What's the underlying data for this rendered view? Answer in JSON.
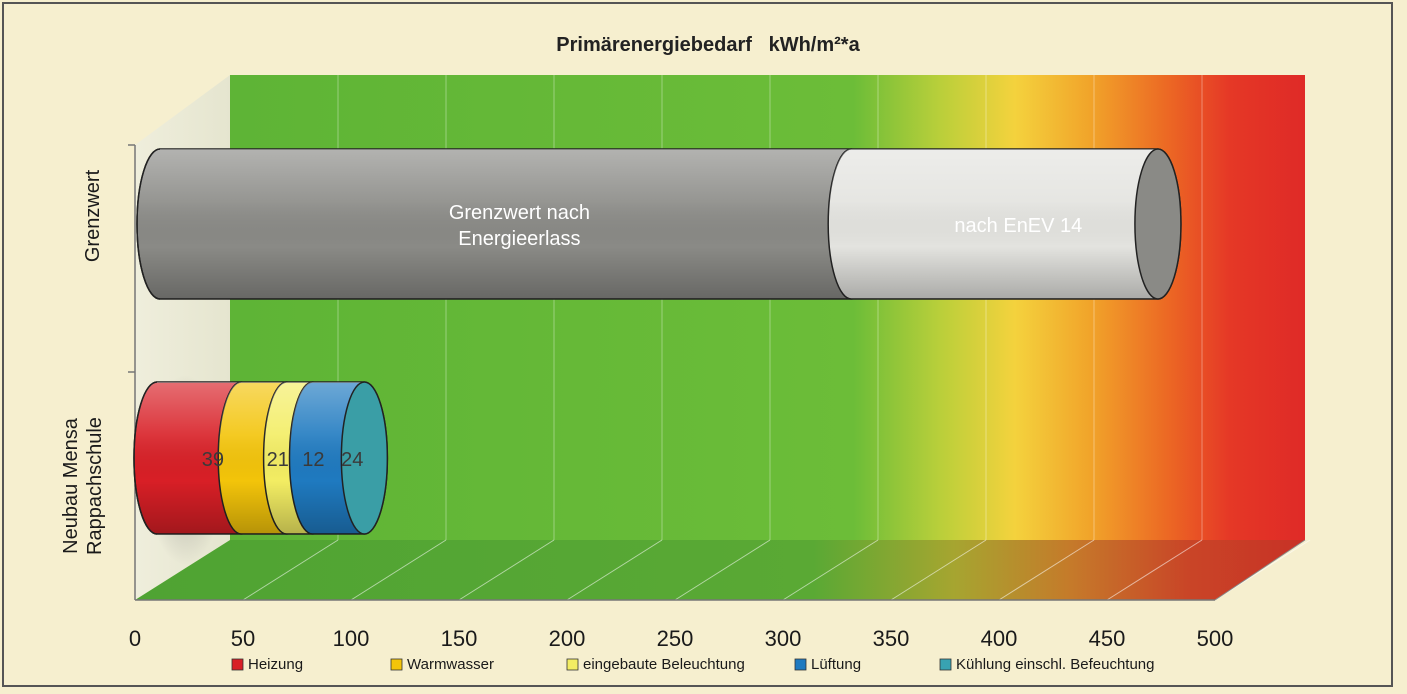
{
  "chart_data": {
    "type": "bar",
    "stacked": true,
    "orientation": "horizontal",
    "three_d": true,
    "bar_shape": "cylinder",
    "title": "Primärenergiebedarf   kWh/m²*a",
    "xlim": [
      0,
      500
    ],
    "x_ticks": [
      0,
      50,
      100,
      150,
      200,
      250,
      300,
      350,
      400,
      450,
      500
    ],
    "background": "gradient green (0–350) to yellow/orange/red (500)",
    "legend_position": "bottom",
    "categories": [
      {
        "label_lines": [
          "Neubau Mensa",
          "Rappachschule"
        ]
      },
      {
        "label_lines": [
          "Grenzwert"
        ]
      }
    ],
    "series": [
      {
        "name": "Heizung",
        "color": "#d81f26",
        "values": [
          39,
          null
        ]
      },
      {
        "name": "Warmwasser",
        "color": "#f3c40a",
        "values": [
          21,
          null
        ]
      },
      {
        "name": "eingebaute Beleuchtung",
        "color": "#f3ed63",
        "values": [
          12,
          null
        ]
      },
      {
        "name": "Lüftung",
        "color": "#1f7ac0",
        "values": [
          24,
          null
        ]
      },
      {
        "name": "Kühlung einschl. Befeuchtung",
        "color": "#38a3b2",
        "values": [
          0,
          null
        ]
      },
      {
        "name": "Grenzwert nach Energieerlass",
        "color": "#8a8a86",
        "values": [
          null,
          320
        ]
      },
      {
        "name": "nach EnEV 14",
        "color": "#e3e3df",
        "values": [
          null,
          142
        ]
      }
    ],
    "bar_labels": [
      {
        "category": 0,
        "series": 0,
        "text": "39"
      },
      {
        "category": 0,
        "series": 1,
        "text": "21"
      },
      {
        "category": 0,
        "series": 2,
        "text": "12"
      },
      {
        "category": 0,
        "series": 3,
        "text": "24"
      },
      {
        "category": 1,
        "series": 5,
        "text_lines": [
          "Grenzwert nach",
          "Energieerlass"
        ]
      },
      {
        "category": 1,
        "series": 6,
        "text_lines": [
          "nach EnEV 14"
        ]
      }
    ],
    "legend": [
      {
        "name": "Heizung",
        "color": "#d81f26"
      },
      {
        "name": "Warmwasser",
        "color": "#f3c40a"
      },
      {
        "name": "eingebaute Beleuchtung",
        "color": "#f3ed63"
      },
      {
        "name": "Lüftung",
        "color": "#1f7ac0"
      },
      {
        "name": "Kühlung einschl. Befeuchtung",
        "color": "#38a3b2"
      }
    ]
  }
}
